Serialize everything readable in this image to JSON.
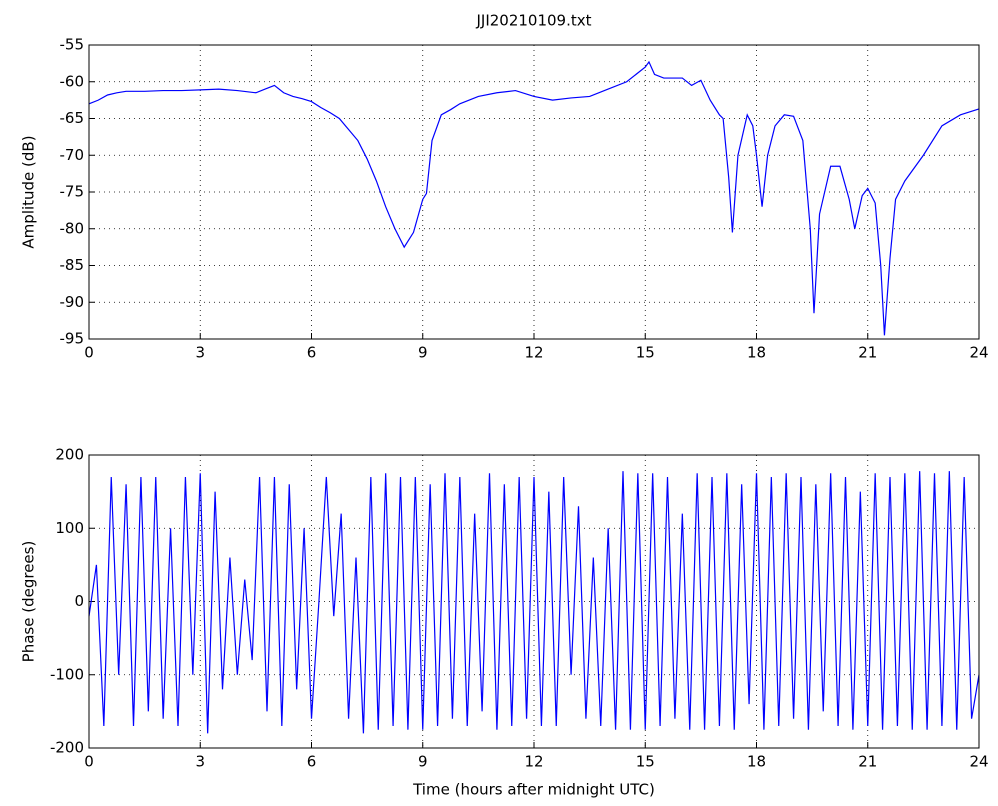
{
  "chart_data": [
    {
      "type": "line",
      "title": "JJI20210109.txt",
      "y_label": "Amplitude (dB)",
      "xlim": [
        0,
        24
      ],
      "xticks": [
        0,
        3,
        6,
        9,
        12,
        15,
        18,
        21,
        24
      ],
      "ylim": [
        -95,
        -55
      ],
      "yticks": [
        -95,
        -90,
        -85,
        -80,
        -75,
        -70,
        -65,
        -60,
        -55
      ],
      "grid": true,
      "series": [
        {
          "color": "#0000ff",
          "x": [
            0,
            0.25,
            0.5,
            0.75,
            1,
            1.5,
            2,
            2.5,
            3,
            3.5,
            4,
            4.5,
            4.75,
            5,
            5.25,
            5.5,
            5.75,
            6,
            6.25,
            6.5,
            6.75,
            7,
            7.25,
            7.5,
            7.75,
            8,
            8.25,
            8.5,
            8.75,
            9,
            9.1,
            9.25,
            9.5,
            9.75,
            10,
            10.5,
            11,
            11.5,
            12,
            12.5,
            13,
            13.5,
            14,
            14.5,
            15,
            15.1,
            15.25,
            15.5,
            16,
            16.25,
            16.5,
            16.75,
            17,
            17.1,
            17.25,
            17.35,
            17.5,
            17.75,
            17.9,
            18,
            18.15,
            18.3,
            18.5,
            18.75,
            19,
            19.25,
            19.45,
            19.55,
            19.7,
            20,
            20.25,
            20.5,
            20.65,
            20.85,
            21,
            21.2,
            21.35,
            21.45,
            21.6,
            21.75,
            22,
            22.5,
            23,
            23.5,
            24
          ],
          "values": [
            -63,
            -62.5,
            -61.8,
            -61.5,
            -61.3,
            -61.3,
            -61.2,
            -61.2,
            -61.1,
            -61,
            -61.2,
            -61.5,
            -61,
            -60.5,
            -61.5,
            -62,
            -62.3,
            -62.7,
            -63.5,
            -64.2,
            -65,
            -66.5,
            -68,
            -70.5,
            -73.5,
            -77,
            -80,
            -82.5,
            -80.5,
            -76,
            -75.2,
            -68,
            -64.5,
            -63.8,
            -63,
            -62,
            -61.5,
            -61.2,
            -62,
            -62.5,
            -62.2,
            -62,
            -61,
            -60,
            -58,
            -57.3,
            -59,
            -59.5,
            -59.5,
            -60.5,
            -59.8,
            -62.5,
            -64.5,
            -65,
            -73,
            -80.5,
            -70,
            -64.5,
            -66,
            -70,
            -77,
            -70,
            -66,
            -64.5,
            -64.7,
            -68,
            -80,
            -91.5,
            -78,
            -71.5,
            -71.5,
            -76,
            -80,
            -75.5,
            -74.5,
            -76.5,
            -85,
            -94.5,
            -84,
            -76,
            -73.5,
            -70,
            -66,
            -64.5,
            -63.7
          ]
        }
      ]
    },
    {
      "type": "line",
      "y_label": "Phase (degrees)",
      "x_label": "Time (hours after midnight UTC)",
      "xlim": [
        0,
        24
      ],
      "xticks": [
        0,
        3,
        6,
        9,
        12,
        15,
        18,
        21,
        24
      ],
      "ylim": [
        -200,
        200
      ],
      "yticks": [
        -200,
        -100,
        0,
        100,
        200
      ],
      "grid": true,
      "series": [
        {
          "color": "#0000ff",
          "x": [
            0,
            0.2,
            0.4,
            0.6,
            0.8,
            1,
            1.2,
            1.4,
            1.6,
            1.8,
            2,
            2.2,
            2.4,
            2.6,
            2.8,
            3,
            3.2,
            3.4,
            3.6,
            3.8,
            4,
            4.2,
            4.4,
            4.6,
            4.8,
            5,
            5.2,
            5.4,
            5.6,
            5.8,
            6,
            6.2,
            6.4,
            6.6,
            6.8,
            7,
            7.2,
            7.4,
            7.6,
            7.8,
            8,
            8.2,
            8.4,
            8.6,
            8.8,
            9,
            9.2,
            9.4,
            9.6,
            9.8,
            10,
            10.2,
            10.4,
            10.6,
            10.8,
            11,
            11.2,
            11.4,
            11.6,
            11.8,
            12,
            12.2,
            12.4,
            12.6,
            12.8,
            13,
            13.2,
            13.4,
            13.6,
            13.8,
            14,
            14.2,
            14.4,
            14.6,
            14.8,
            15,
            15.2,
            15.4,
            15.6,
            15.8,
            16,
            16.2,
            16.4,
            16.6,
            16.8,
            17,
            17.2,
            17.4,
            17.6,
            17.8,
            18,
            18.2,
            18.4,
            18.6,
            18.8,
            19,
            19.2,
            19.4,
            19.6,
            19.8,
            20,
            20.2,
            20.4,
            20.6,
            20.8,
            21,
            21.2,
            21.4,
            21.6,
            21.8,
            22,
            22.2,
            22.4,
            22.6,
            22.8,
            23,
            23.2,
            23.4,
            23.6,
            23.8,
            24
          ],
          "values": [
            -20,
            50,
            -170,
            170,
            -100,
            160,
            -170,
            170,
            -150,
            170,
            -160,
            100,
            -170,
            170,
            -100,
            175,
            -180,
            150,
            -120,
            60,
            -100,
            30,
            -80,
            170,
            -150,
            170,
            -170,
            160,
            -120,
            100,
            -160,
            0,
            170,
            -20,
            120,
            -160,
            60,
            -180,
            170,
            -175,
            175,
            -170,
            170,
            -175,
            170,
            -175,
            160,
            -170,
            175,
            -160,
            170,
            -170,
            120,
            -150,
            175,
            -175,
            160,
            -170,
            170,
            -160,
            170,
            -170,
            150,
            -170,
            170,
            -100,
            130,
            -160,
            60,
            -170,
            100,
            -175,
            178,
            -175,
            175,
            -175,
            175,
            -170,
            170,
            -160,
            120,
            -175,
            175,
            -175,
            170,
            -170,
            175,
            -175,
            160,
            -140,
            175,
            -175,
            170,
            -170,
            175,
            -160,
            170,
            -175,
            160,
            -150,
            175,
            -170,
            170,
            -175,
            150,
            -170,
            175,
            -175,
            170,
            -170,
            175,
            -175,
            178,
            -175,
            175,
            -170,
            178,
            -175,
            170,
            -160,
            -100
          ]
        }
      ]
    }
  ]
}
